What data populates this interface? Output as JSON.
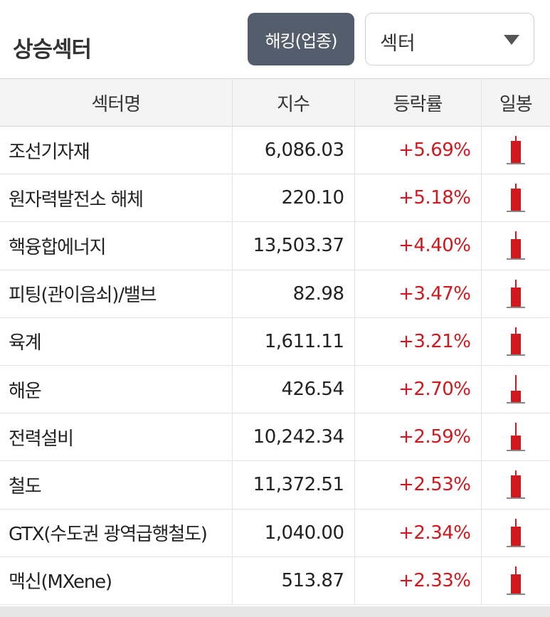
{
  "header": {
    "title": "상승섹터",
    "hacking_button": "해킹(업종)",
    "select_value": "섹터"
  },
  "table": {
    "columns": [
      "섹터명",
      "지수",
      "등락률",
      "일봉"
    ],
    "rows": [
      {
        "name": "조선기자재",
        "index": "6,086.03",
        "change": "+5.69%",
        "candle_body_fraction": 0.85
      },
      {
        "name": "원자력발전소 해체",
        "index": "220.10",
        "change": "+5.18%",
        "candle_body_fraction": 0.85
      },
      {
        "name": "핵융합에너지",
        "index": "13,503.37",
        "change": "+4.40%",
        "candle_body_fraction": 0.75
      },
      {
        "name": "피팅(관이음쇠)/밸브",
        "index": "82.98",
        "change": "+3.47%",
        "candle_body_fraction": 0.75
      },
      {
        "name": "육계",
        "index": "1,611.11",
        "change": "+3.21%",
        "candle_body_fraction": 0.8
      },
      {
        "name": "해운",
        "index": "426.54",
        "change": "+2.70%",
        "candle_body_fraction": 0.45
      },
      {
        "name": "전력설비",
        "index": "10,242.34",
        "change": "+2.59%",
        "candle_body_fraction": 0.55
      },
      {
        "name": "철도",
        "index": "11,372.51",
        "change": "+2.53%",
        "candle_body_fraction": 0.85
      },
      {
        "name": "GTX(수도권 광역급행철도)",
        "index": "1,040.00",
        "change": "+2.34%",
        "candle_body_fraction": 0.75
      },
      {
        "name": "맥신(MXene)",
        "index": "513.87",
        "change": "+2.33%",
        "candle_body_fraction": 0.75
      }
    ]
  },
  "colors": {
    "up": "#d0191e",
    "button_bg": "#545d6b"
  },
  "icons": {
    "select_arrow": "caret-down-icon",
    "candle": "candlestick-icon"
  }
}
